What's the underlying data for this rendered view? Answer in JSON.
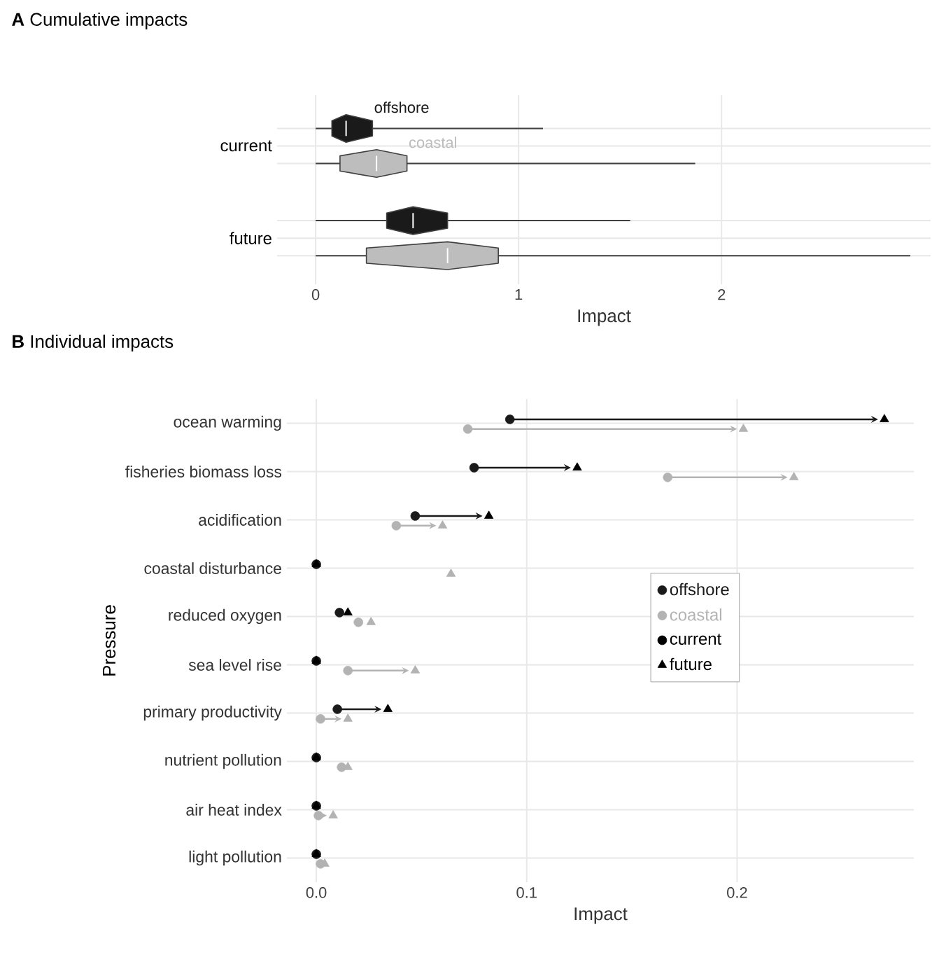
{
  "chart_data": [
    {
      "type": "box",
      "title": "**A** Cumulative impacts",
      "orientation": "horizontal",
      "categories": [
        "current",
        "future"
      ],
      "xlabel": "Impact",
      "xlim": [
        -0.19,
        3.03
      ],
      "xticks": [
        0,
        1,
        2
      ],
      "grid": true,
      "series": [
        {
          "name": "offshore",
          "color": "#1a1a1a",
          "boxes": [
            {
              "low": 0,
              "q1": 0.08,
              "median": 0.15,
              "q3": 0.28,
              "high": 1.12
            },
            {
              "low": 0,
              "q1": 0.35,
              "median": 0.48,
              "q3": 0.65,
              "high": 1.55
            }
          ]
        },
        {
          "name": "coastal",
          "color": "#bdbdbd",
          "boxes": [
            {
              "low": 0,
              "q1": 0.12,
              "median": 0.3,
              "q3": 0.45,
              "high": 1.87
            },
            {
              "low": 0,
              "q1": 0.25,
              "median": 0.65,
              "q3": 0.9,
              "high": 2.93
            }
          ]
        }
      ]
    },
    {
      "type": "scatter",
      "title": "**B** Individual impacts",
      "orientation": "horizontal",
      "categories": [
        "ocean warming",
        "fisheries biomass loss",
        "acidification",
        "coastal disturbance",
        "reduced oxygen",
        "sea level rise",
        "primary productivity",
        "nutrient pollution",
        "air heat index",
        "light pollution"
      ],
      "xlabel": "Impact",
      "ylabel": "Pressure",
      "xlim": [
        -0.014,
        0.284
      ],
      "xticks": [
        {
          "value": 0,
          "label": "0.0"
        },
        0.1,
        0.2
      ],
      "grid": true,
      "legend": "right",
      "annotations": [
        "current"
      ],
      "series": [
        {
          "name": "offshore",
          "color": "#1a1a1a",
          "marker": "circle",
          "values": [
            0.092,
            0.075,
            0.047,
            0,
            0.011,
            0,
            0.01,
            0,
            0,
            0
          ]
        },
        {
          "name": "coastal",
          "color": "#b3b3b3",
          "marker": "circle",
          "values": [
            0.072,
            0.167,
            0.038,
            null,
            0.02,
            0.015,
            0.002,
            0.012,
            0.001,
            0.002
          ]
        },
        {
          "name": "future",
          "color": "#000000",
          "marker": "triangle",
          "values": [
            0.27,
            0.124,
            0.082,
            0,
            0.015,
            0,
            0.034,
            0,
            0,
            0
          ]
        },
        {
          "color": "#b3b3b3",
          "marker": "triangle",
          "values": [
            0.203,
            0.227,
            0.06,
            0.064,
            0.026,
            0.047,
            0.015,
            0.015,
            0.008,
            0.004
          ]
        }
      ]
    }
  ]
}
